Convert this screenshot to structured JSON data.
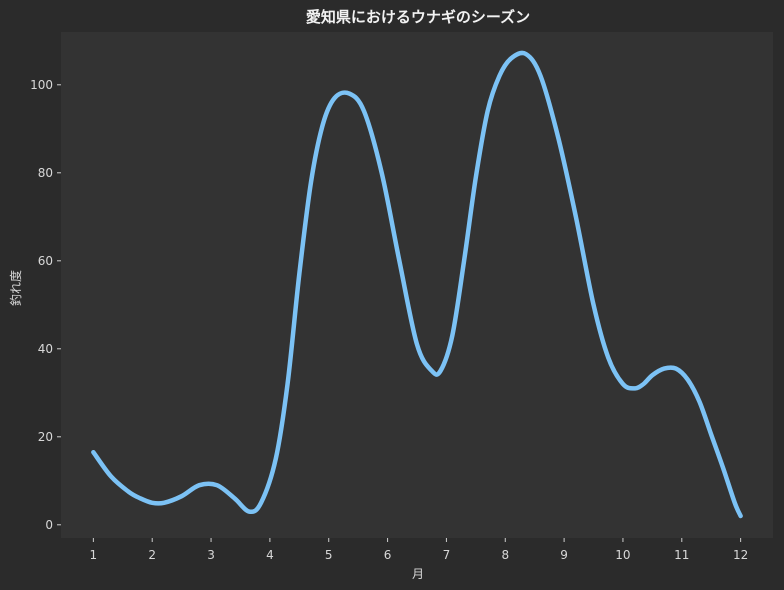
{
  "chart_data": {
    "type": "line",
    "title": "愛知県におけるウナギのシーズン",
    "xlabel": "月",
    "ylabel": "釣れ度",
    "xlim": [
      0.45,
      12.55
    ],
    "ylim": [
      -3,
      112
    ],
    "xticks": [
      1,
      2,
      3,
      4,
      5,
      6,
      7,
      8,
      9,
      10,
      11,
      12
    ],
    "yticks": [
      0,
      20,
      40,
      60,
      80,
      100
    ],
    "grid": false,
    "colors": {
      "figure_background": "#2b2b2b",
      "plot_background": "#333333",
      "line": "#7cc2f5"
    },
    "series": [
      {
        "x": [
          1,
          1.3,
          1.6,
          1.8,
          2,
          2.2,
          2.5,
          2.8,
          3.1,
          3.4,
          3.65,
          3.85,
          4.1,
          4.3,
          4.5,
          4.7,
          4.9,
          5.1,
          5.35,
          5.6,
          5.9,
          6.2,
          6.5,
          6.75,
          6.9,
          7.1,
          7.3,
          7.5,
          7.7,
          7.9,
          8.1,
          8.35,
          8.6,
          8.9,
          9.2,
          9.5,
          9.75,
          10.0,
          10.2,
          10.35,
          10.5,
          10.7,
          10.9,
          11.1,
          11.3,
          11.5,
          11.7,
          11.9,
          12
        ],
        "y": [
          16.5,
          11,
          7.5,
          6,
          5,
          5,
          6.5,
          9,
          9,
          6,
          3,
          5,
          15,
          32,
          57,
          78,
          91,
          97,
          98,
          94,
          80,
          60,
          41,
          35,
          35,
          43,
          60,
          79,
          94,
          102,
          106,
          107,
          102,
          88,
          70,
          50,
          38,
          32,
          31,
          32,
          34,
          35.5,
          35.5,
          33,
          28,
          20.5,
          13,
          5,
          2
        ]
      }
    ]
  }
}
